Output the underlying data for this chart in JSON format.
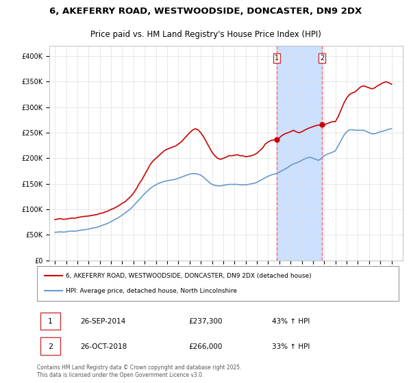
{
  "title_line1": "6, AKEFERRY ROAD, WESTWOODSIDE, DONCASTER, DN9 2DX",
  "title_line2": "Price paid vs. HM Land Registry's House Price Index (HPI)",
  "legend_label_red": "6, AKEFERRY ROAD, WESTWOODSIDE, DONCASTER, DN9 2DX (detached house)",
  "legend_label_blue": "HPI: Average price, detached house, North Lincolnshire",
  "footer": "Contains HM Land Registry data © Crown copyright and database right 2025.\nThis data is licensed under the Open Government Licence v3.0.",
  "annotation1_label": "1",
  "annotation1_date": "26-SEP-2014",
  "annotation1_price": "£237,300",
  "annotation1_hpi": "43% ↑ HPI",
  "annotation2_label": "2",
  "annotation2_date": "26-OCT-2018",
  "annotation2_price": "£266,000",
  "annotation2_hpi": "33% ↑ HPI",
  "point1_x": 2014.74,
  "point1_y": 237300,
  "point2_x": 2018.82,
  "point2_y": 266000,
  "red_color": "#cc0000",
  "blue_color": "#6699cc",
  "shading_color": "#cce0ff",
  "vline_color": "#ff6666",
  "background_color": "#ffffff",
  "ylim_min": 0,
  "ylim_max": 420000,
  "xlim_min": 1994.5,
  "xlim_max": 2026,
  "yticks": [
    0,
    50000,
    100000,
    150000,
    200000,
    250000,
    300000,
    350000,
    400000
  ],
  "xticks": [
    1995,
    1996,
    1997,
    1998,
    1999,
    2000,
    2001,
    2002,
    2003,
    2004,
    2005,
    2006,
    2007,
    2008,
    2009,
    2010,
    2011,
    2012,
    2013,
    2014,
    2015,
    2016,
    2017,
    2018,
    2019,
    2020,
    2021,
    2022,
    2023,
    2024,
    2025
  ],
  "red_x": [
    1995.0,
    1995.25,
    1995.5,
    1995.75,
    1996.0,
    1996.25,
    1996.5,
    1996.75,
    1997.0,
    1997.25,
    1997.5,
    1997.75,
    1998.0,
    1998.25,
    1998.5,
    1998.75,
    1999.0,
    1999.25,
    1999.5,
    1999.75,
    2000.0,
    2000.25,
    2000.5,
    2000.75,
    2001.0,
    2001.25,
    2001.5,
    2001.75,
    2002.0,
    2002.25,
    2002.5,
    2002.75,
    2003.0,
    2003.25,
    2003.5,
    2003.75,
    2004.0,
    2004.25,
    2004.5,
    2004.75,
    2005.0,
    2005.25,
    2005.5,
    2005.75,
    2006.0,
    2006.25,
    2006.5,
    2006.75,
    2007.0,
    2007.25,
    2007.5,
    2007.75,
    2008.0,
    2008.25,
    2008.5,
    2008.75,
    2009.0,
    2009.25,
    2009.5,
    2009.75,
    2010.0,
    2010.25,
    2010.5,
    2010.75,
    2011.0,
    2011.25,
    2011.5,
    2011.75,
    2012.0,
    2012.25,
    2012.5,
    2012.75,
    2013.0,
    2013.25,
    2013.5,
    2013.75,
    2014.0,
    2014.25,
    2014.5,
    2014.74,
    2015.0,
    2015.25,
    2015.5,
    2015.75,
    2016.0,
    2016.25,
    2016.5,
    2016.75,
    2017.0,
    2017.25,
    2017.5,
    2017.75,
    2018.0,
    2018.25,
    2018.5,
    2018.82,
    2019.0,
    2019.25,
    2019.5,
    2019.75,
    2020.0,
    2020.25,
    2020.5,
    2020.75,
    2021.0,
    2021.25,
    2021.5,
    2021.75,
    2022.0,
    2022.25,
    2022.5,
    2022.75,
    2023.0,
    2023.25,
    2023.5,
    2023.75,
    2024.0,
    2024.25,
    2024.5,
    2024.75,
    2025.0
  ],
  "red_y": [
    80000,
    81000,
    82000,
    80500,
    81000,
    82000,
    83000,
    82500,
    84000,
    85000,
    86000,
    86500,
    87000,
    88000,
    89000,
    90000,
    92000,
    93000,
    95000,
    97000,
    100000,
    102000,
    105000,
    108000,
    112000,
    115000,
    120000,
    125000,
    132000,
    140000,
    150000,
    158000,
    168000,
    178000,
    188000,
    195000,
    200000,
    205000,
    210000,
    215000,
    218000,
    220000,
    222000,
    224000,
    228000,
    232000,
    238000,
    244000,
    250000,
    255000,
    258000,
    256000,
    250000,
    242000,
    232000,
    222000,
    212000,
    205000,
    200000,
    198000,
    200000,
    202000,
    205000,
    205000,
    206000,
    207000,
    205000,
    205000,
    203000,
    204000,
    205000,
    207000,
    210000,
    215000,
    220000,
    228000,
    232000,
    235000,
    236000,
    237300,
    240000,
    245000,
    248000,
    250000,
    252000,
    255000,
    252000,
    250000,
    252000,
    255000,
    258000,
    260000,
    262000,
    264000,
    265000,
    266000,
    265000,
    268000,
    270000,
    272000,
    272000,
    282000,
    295000,
    308000,
    318000,
    325000,
    328000,
    330000,
    335000,
    340000,
    342000,
    340000,
    338000,
    336000,
    338000,
    342000,
    345000,
    348000,
    350000,
    348000,
    345000
  ],
  "blue_x": [
    1995.0,
    1995.25,
    1995.5,
    1995.75,
    1996.0,
    1996.25,
    1996.5,
    1996.75,
    1997.0,
    1997.25,
    1997.5,
    1997.75,
    1998.0,
    1998.25,
    1998.5,
    1998.75,
    1999.0,
    1999.25,
    1999.5,
    1999.75,
    2000.0,
    2000.25,
    2000.5,
    2000.75,
    2001.0,
    2001.25,
    2001.5,
    2001.75,
    2002.0,
    2002.25,
    2002.5,
    2002.75,
    2003.0,
    2003.25,
    2003.5,
    2003.75,
    2004.0,
    2004.25,
    2004.5,
    2004.75,
    2005.0,
    2005.25,
    2005.5,
    2005.75,
    2006.0,
    2006.25,
    2006.5,
    2006.75,
    2007.0,
    2007.25,
    2007.5,
    2007.75,
    2008.0,
    2008.25,
    2008.5,
    2008.75,
    2009.0,
    2009.25,
    2009.5,
    2009.75,
    2010.0,
    2010.25,
    2010.5,
    2010.75,
    2011.0,
    2011.25,
    2011.5,
    2011.75,
    2012.0,
    2012.25,
    2012.5,
    2012.75,
    2013.0,
    2013.25,
    2013.5,
    2013.75,
    2014.0,
    2014.25,
    2014.5,
    2014.75,
    2015.0,
    2015.25,
    2015.5,
    2015.75,
    2016.0,
    2016.25,
    2016.5,
    2016.75,
    2017.0,
    2017.25,
    2017.5,
    2017.75,
    2018.0,
    2018.25,
    2018.5,
    2018.75,
    2019.0,
    2019.25,
    2019.5,
    2019.75,
    2020.0,
    2020.25,
    2020.5,
    2020.75,
    2021.0,
    2021.25,
    2021.5,
    2021.75,
    2022.0,
    2022.25,
    2022.5,
    2022.75,
    2023.0,
    2023.25,
    2023.5,
    2023.75,
    2024.0,
    2024.25,
    2024.5,
    2024.75,
    2025.0
  ],
  "blue_y": [
    55000,
    55500,
    56000,
    55500,
    56000,
    57000,
    57500,
    57000,
    58000,
    59000,
    60000,
    60500,
    61500,
    63000,
    64000,
    65000,
    67000,
    69000,
    71000,
    73000,
    76000,
    79000,
    82000,
    85000,
    89000,
    93000,
    97000,
    101000,
    107000,
    113000,
    119000,
    125000,
    131000,
    136000,
    141000,
    145000,
    148000,
    151000,
    153000,
    155000,
    156000,
    157000,
    158000,
    159000,
    161000,
    163000,
    165000,
    167000,
    169000,
    170000,
    170000,
    169000,
    167000,
    163000,
    158000,
    153000,
    149000,
    147000,
    146000,
    146000,
    147000,
    148000,
    149000,
    149000,
    149000,
    149000,
    148000,
    148000,
    148000,
    149000,
    150000,
    151000,
    153000,
    156000,
    159000,
    162000,
    165000,
    167000,
    169000,
    170000,
    173000,
    176000,
    179000,
    182000,
    186000,
    189000,
    191000,
    193000,
    196000,
    199000,
    201000,
    202000,
    200000,
    198000,
    196000,
    200000,
    205000,
    208000,
    210000,
    212000,
    215000,
    225000,
    235000,
    245000,
    252000,
    256000,
    256000,
    255000,
    255000,
    255000,
    255000,
    253000,
    250000,
    248000,
    248000,
    250000,
    252000,
    253000,
    255000,
    257000,
    258000
  ]
}
